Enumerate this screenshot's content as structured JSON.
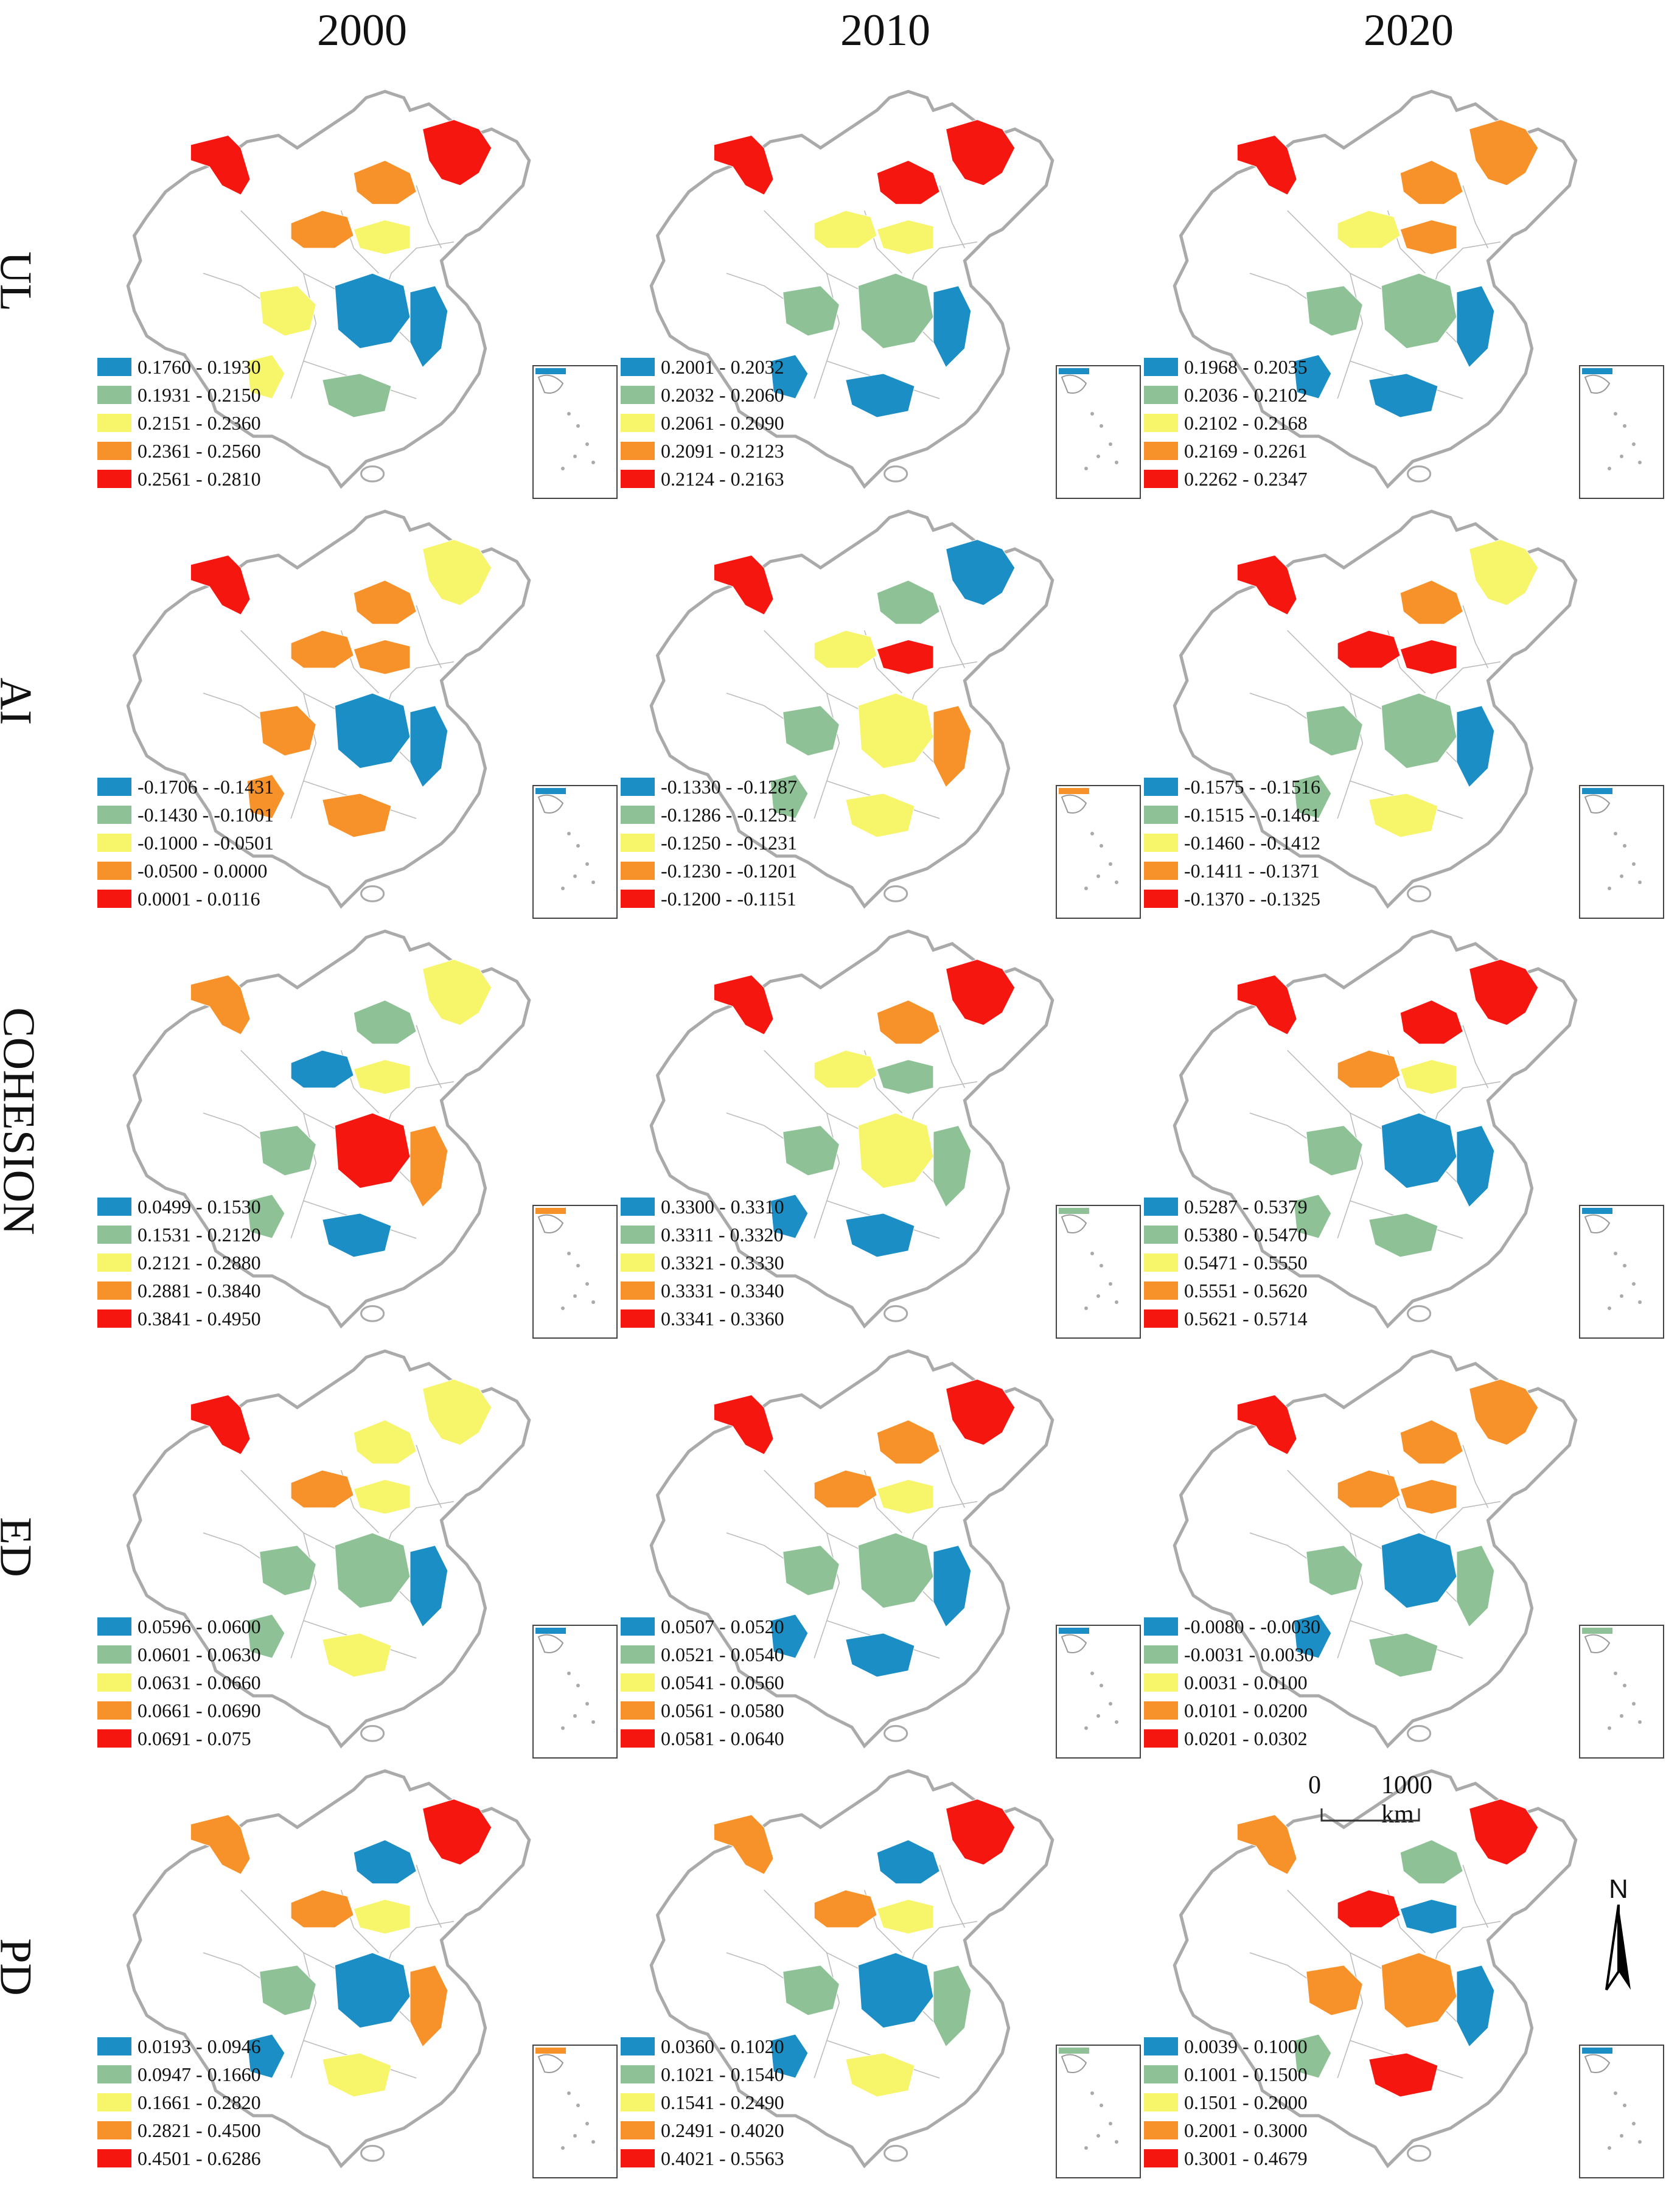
{
  "years": [
    "2000",
    "2010",
    "2020"
  ],
  "indicators": [
    "UL",
    "AI",
    "COHESION",
    "ED",
    "PD"
  ],
  "colors": {
    "class1": "#1b8ec5",
    "class2": "#8fc196",
    "class3": "#f7f56a",
    "class4": "#f7922a",
    "class5": "#f5160f",
    "boundary": "#aaaaaa",
    "province_line": "#bbbbbb"
  },
  "legends": {
    "UL": [
      [
        "0.1760 - 0.1930",
        "0.1931 - 0.2150",
        "0.2151 - 0.2360",
        "0.2361 - 0.2560",
        "0.2561 - 0.2810"
      ],
      [
        "0.2001 - 0.2032",
        "0.2032 - 0.2060",
        "0.2061 - 0.2090",
        "0.2091 - 0.2123",
        "0.2124 - 0.2163"
      ],
      [
        "0.1968 - 0.2035",
        "0.2036 - 0.2102",
        "0.2102 - 0.2168",
        "0.2169 - 0.2261",
        "0.2262 - 0.2347"
      ]
    ],
    "AI": [
      [
        "-0.1706 - -0.1431",
        "-0.1430 - -0.1001",
        "-0.1000 - -0.0501",
        "-0.0500 - 0.0000",
        "0.0001 - 0.0116"
      ],
      [
        "-0.1330 - -0.1287",
        "-0.1286 - -0.1251",
        "-0.1250 - -0.1231",
        "-0.1230 - -0.1201",
        "-0.1200 - -0.1151"
      ],
      [
        "-0.1575 - -0.1516",
        "-0.1515 - -0.1461",
        "-0.1460 - -0.1412",
        "-0.1411 - -0.1371",
        "-0.1370 - -0.1325"
      ]
    ],
    "COHESION": [
      [
        "0.0499 - 0.1530",
        "0.1531 - 0.2120",
        "0.2121 - 0.2880",
        "0.2881 - 0.3840",
        "0.3841 - 0.4950"
      ],
      [
        "0.3300 - 0.3310",
        "0.3311 - 0.3320",
        "0.3321 - 0.3330",
        "0.3331 - 0.3340",
        "0.3341 - 0.3360"
      ],
      [
        "0.5287 - 0.5379",
        "0.5380 - 0.5470",
        "0.5471 - 0.5550",
        "0.5551 - 0.5620",
        "0.5621 - 0.5714"
      ]
    ],
    "ED": [
      [
        "0.0596 - 0.0600",
        "0.0601 - 0.0630",
        "0.0631 - 0.0660",
        "0.0661 - 0.0690",
        "0.0691 - 0.075"
      ],
      [
        "0.0507 - 0.0520",
        "0.0521 - 0.0540",
        "0.0541 - 0.0560",
        "0.0561 - 0.0580",
        "0.0581 - 0.0640"
      ],
      [
        "-0.0080 - -0.0030",
        "-0.0031 - 0.0030",
        "0.0031 - 0.0100",
        "0.0101 - 0.0200",
        "0.0201 - 0.0302"
      ]
    ],
    "PD": [
      [
        "0.0193 - 0.0946",
        "0.0947 - 0.1660",
        "0.1661 - 0.2820",
        "0.2821 - 0.4500",
        "0.4501 - 0.6286"
      ],
      [
        "0.0360 - 0.1020",
        "0.1021 - 0.1540",
        "0.1541 - 0.2490",
        "0.2491 - 0.4020",
        "0.4021 - 0.5563"
      ],
      [
        "0.0039 - 0.1000",
        "0.1001 - 0.1500",
        "0.1501 - 0.2000",
        "0.2001 - 0.3000",
        "0.3001 - 0.4679"
      ]
    ]
  },
  "region_classes": {
    "UL": [
      [
        5,
        5,
        4,
        4,
        3,
        3,
        1,
        1,
        2,
        3
      ],
      [
        5,
        5,
        5,
        3,
        3,
        2,
        2,
        1,
        1,
        1
      ],
      [
        5,
        4,
        4,
        3,
        4,
        2,
        2,
        1,
        1,
        1
      ]
    ],
    "AI": [
      [
        5,
        3,
        4,
        4,
        4,
        4,
        1,
        1,
        4,
        4
      ],
      [
        5,
        1,
        2,
        3,
        5,
        2,
        3,
        4,
        3,
        2
      ],
      [
        5,
        3,
        4,
        5,
        5,
        2,
        2,
        1,
        3,
        2
      ]
    ],
    "COHESION": [
      [
        4,
        3,
        2,
        1,
        3,
        2,
        5,
        4,
        1,
        2
      ],
      [
        5,
        5,
        4,
        3,
        2,
        2,
        3,
        2,
        1,
        1
      ],
      [
        5,
        5,
        5,
        4,
        3,
        2,
        1,
        1,
        2,
        2
      ]
    ],
    "ED": [
      [
        5,
        3,
        3,
        4,
        3,
        2,
        2,
        1,
        3,
        2
      ],
      [
        5,
        5,
        4,
        4,
        3,
        2,
        2,
        1,
        1,
        1
      ],
      [
        5,
        4,
        4,
        4,
        4,
        2,
        1,
        2,
        2,
        1
      ]
    ],
    "PD": [
      [
        4,
        5,
        1,
        4,
        3,
        2,
        1,
        4,
        3,
        1
      ],
      [
        4,
        5,
        1,
        4,
        3,
        2,
        1,
        2,
        3,
        1
      ],
      [
        4,
        5,
        2,
        5,
        1,
        4,
        4,
        1,
        5,
        2
      ]
    ]
  },
  "scale_bar": {
    "start_label": "0",
    "end_label": "1000 km"
  },
  "north_arrow": {
    "label": "N"
  }
}
